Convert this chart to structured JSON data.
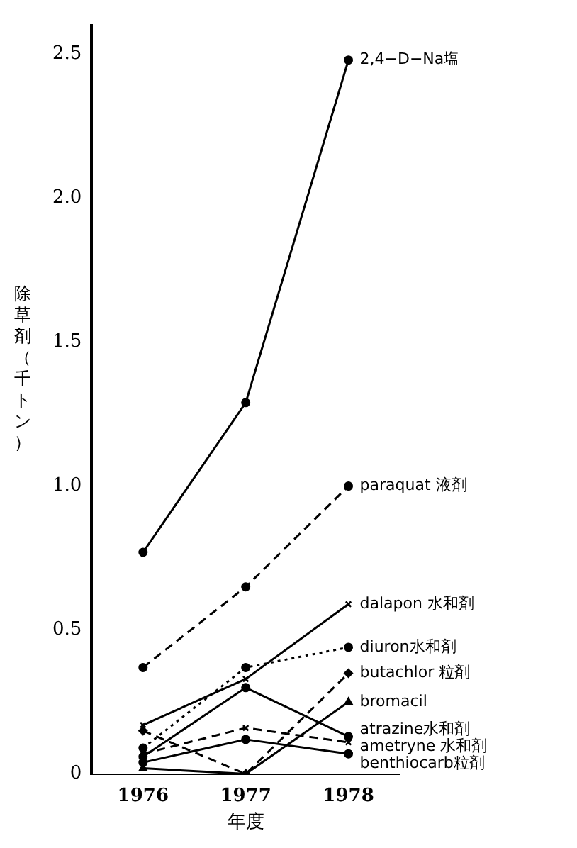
{
  "chart_data": {
    "type": "line",
    "xlabel": "年度",
    "ylabel": "除草剤（千トン）",
    "categories": [
      "1976",
      "1977",
      "1978"
    ],
    "ylim": [
      0,
      2.6
    ],
    "yticks": [
      0,
      0.5,
      {
        "value": 1,
        "label": "1.0"
      },
      1.5,
      {
        "value": 2,
        "label": "2.0"
      },
      2.5
    ],
    "grid": false,
    "legend": false,
    "series": [
      {
        "name": "2,4−D−Na塩",
        "color": "#000000",
        "values": [
          0.77,
          1.29,
          2.48
        ],
        "marker": "circle",
        "line_style": "solid"
      },
      {
        "name": "paraquat 液剤",
        "color": "#000000",
        "values": [
          0.37,
          0.65,
          1.0
        ],
        "marker": "circle",
        "line_style": "dashed"
      },
      {
        "name": "dalapon 水和剤",
        "color": "#000000",
        "values": [
          0.17,
          0.33,
          0.59
        ],
        "marker": "cross",
        "line_style": "solid"
      },
      {
        "name": "diuron水和剤",
        "color": "#000000",
        "values": [
          0.09,
          0.37,
          0.44
        ],
        "marker": "circle",
        "line_style": "dotted"
      },
      {
        "name": "butachlor 粒剤",
        "color": "#000000",
        "values": [
          0.15,
          0.0,
          0.35
        ],
        "marker": "diamond",
        "line_style": "dashed"
      },
      {
        "name": "bromacil",
        "color": "#000000",
        "values": [
          0.02,
          0.0,
          0.25
        ],
        "marker": "triangle",
        "line_style": "solid"
      },
      {
        "name": "atrazine水和剤",
        "color": "#000000",
        "values": [
          0.06,
          0.3,
          0.13
        ],
        "marker": "circle",
        "line_style": "solid"
      },
      {
        "name": "ametryne 水和剤",
        "color": "#000000",
        "values": [
          0.07,
          0.16,
          0.11
        ],
        "marker": "cross",
        "line_style": "dashed"
      },
      {
        "name": "benthiocarb粒剤",
        "color": "#000000",
        "values": [
          0.04,
          0.12,
          0.07
        ],
        "marker": "circle",
        "line_style": "solid"
      }
    ]
  }
}
